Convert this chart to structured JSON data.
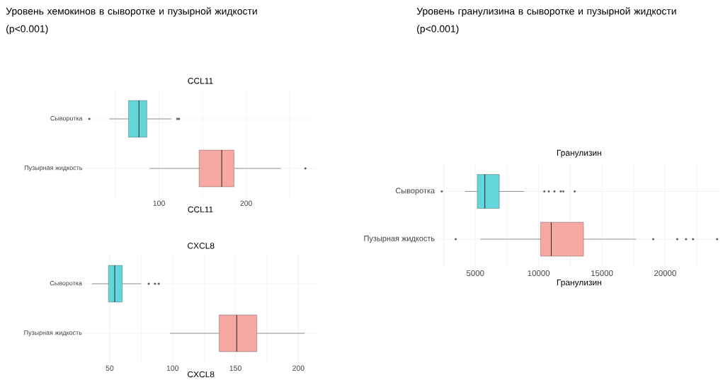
{
  "chart_data": [
    {
      "type": "box",
      "orientation": "horizontal",
      "title": "Уровень хемокинов в сыворотке и пузырной жидкости (p<0.001)",
      "subtitle": "CCL11",
      "xlabel": "CCL11",
      "categories": [
        "Сыворотка",
        "Пузырная жидкость"
      ],
      "colors": [
        "#62d6da",
        "#f8a8a2"
      ],
      "boxes": [
        {
          "low": 43,
          "q1": 65,
          "median": 77,
          "q3": 86,
          "high": 114,
          "outliers": [
            20,
            121,
            123
          ]
        },
        {
          "low": 89,
          "q1": 146,
          "median": 172,
          "q3": 186,
          "high": 240,
          "outliers": [
            268
          ]
        }
      ],
      "xlim": [
        15,
        280
      ],
      "xticks": [
        {
          "value": 50,
          "label": null
        },
        100,
        {
          "value": 150,
          "label": null
        },
        200,
        {
          "value": 250,
          "label": null
        }
      ],
      "grid": true
    },
    {
      "type": "box",
      "orientation": "horizontal",
      "title": "CXCL8",
      "xlabel": "CXCL8",
      "categories": [
        "Сыворотка",
        "Пузырная жидкость"
      ],
      "colors": [
        "#62d6da",
        "#f8a8a2"
      ],
      "boxes": [
        {
          "low": 36,
          "q1": 49,
          "median": 54,
          "q3": 60,
          "high": 75,
          "outliers": [
            81,
            86,
            89
          ]
        },
        {
          "low": 98,
          "q1": 137,
          "median": 151,
          "q3": 167,
          "high": 205
        }
      ],
      "xlim": [
        30,
        215
      ],
      "xticks": [
        50,
        {
          "value": 75,
          "label": null
        },
        100,
        {
          "value": 125,
          "label": null
        },
        150,
        {
          "value": 175,
          "label": null
        },
        200
      ],
      "grid": true
    },
    {
      "type": "box",
      "orientation": "horizontal",
      "title": "Уровень гранулизина в сыворотке и пузырной жидкости (p<0.001)",
      "subtitle": "Гранулизин",
      "xlabel": "Гранулизин",
      "categories": [
        "Сыворотка",
        "Пузырная жидкость"
      ],
      "colors": [
        "#62d6da",
        "#f8a8a2"
      ],
      "boxes": [
        {
          "low": 4200,
          "q1": 5150,
          "median": 5750,
          "q3": 6900,
          "high": 8850,
          "outliers": [
            2350,
            10450,
            10800,
            11250,
            11750,
            11950,
            12850
          ]
        },
        {
          "low": 5400,
          "q1": 10150,
          "median": 11000,
          "q3": 13550,
          "high": 17700,
          "outliers": [
            3450,
            19050,
            20950,
            21650,
            22200,
            24100
          ]
        }
      ],
      "xlim": [
        2000,
        24400
      ],
      "xticks": [
        {
          "value": 2500,
          "label": null
        },
        5000,
        {
          "value": 7500,
          "label": null
        },
        10000,
        {
          "value": 12500,
          "label": null
        },
        15000,
        {
          "value": 17500,
          "label": null
        },
        20000,
        {
          "value": 22500,
          "label": null
        }
      ],
      "grid": true
    }
  ]
}
